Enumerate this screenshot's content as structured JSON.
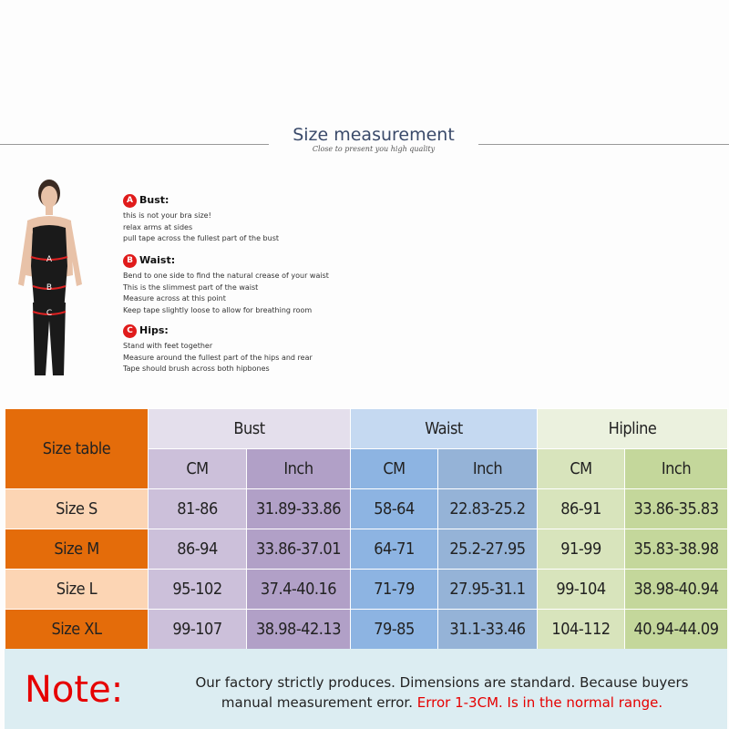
{
  "header": {
    "title": "Size measurement",
    "subtitle": "Close to present you high quality"
  },
  "guide": [
    {
      "letter": "A",
      "title": "Bust:",
      "lines": [
        "this is not your bra size!",
        "relax arms at sides",
        "pull tape across the fullest part of the bust"
      ]
    },
    {
      "letter": "B",
      "title": "Waist:",
      "lines": [
        "Bend  to one side to find the natural crease of your waist",
        "This is the slimmest part of the waist",
        "Measure across at this point",
        "Keep tape slightly loose to allow for breathing room"
      ]
    },
    {
      "letter": "C",
      "title": "Hips:",
      "lines": [
        "Stand with feet together",
        "Measure around the fullest part of the hips and rear",
        "Tape should brush across both hipbones"
      ]
    }
  ],
  "table": {
    "corner": "Size table",
    "groups": [
      "Bust",
      "Waist",
      "Hipline"
    ],
    "units": [
      "CM",
      "Inch",
      "CM",
      "Inch",
      "CM",
      "Inch"
    ],
    "rows": [
      {
        "size": "Size S",
        "values": [
          "81-86",
          "31.89-33.86",
          "58-64",
          "22.83-25.2",
          "86-91",
          "33.86-35.83"
        ]
      },
      {
        "size": "Size M",
        "values": [
          "86-94",
          "33.86-37.01",
          "64-71",
          "25.2-27.95",
          "91-99",
          "35.83-38.98"
        ]
      },
      {
        "size": "Size L",
        "values": [
          "95-102",
          "37.4-40.16",
          "71-79",
          "27.95-31.1",
          "99-104",
          "38.98-40.94"
        ]
      },
      {
        "size": "Size XL",
        "values": [
          "99-107",
          "38.98-42.13",
          "79-85",
          "31.1-33.46",
          "104-112",
          "40.94-44.09"
        ]
      }
    ]
  },
  "note": {
    "label": "Note:",
    "text1": "Our factory strictly produces. Dimensions are standard. Because buyers manual measurement error.",
    "text2": "Error 1-3CM. Is in the normal range."
  },
  "colors": {
    "orange": "#e46c0a",
    "peach": "#fcd5b4",
    "bust_head": "#e4dfec",
    "bust_cm": "#ccc0da",
    "bust_inch": "#b1a0c7",
    "waist_head": "#c5d9f1",
    "waist_cm": "#8db4e2",
    "waist_inch": "#95b3d7",
    "hip_head": "#ebf1de",
    "hip_cm": "#d8e4bc",
    "hip_inch": "#c4d79b",
    "note_bg": "#dcedf2",
    "note_red": "#e60000"
  }
}
